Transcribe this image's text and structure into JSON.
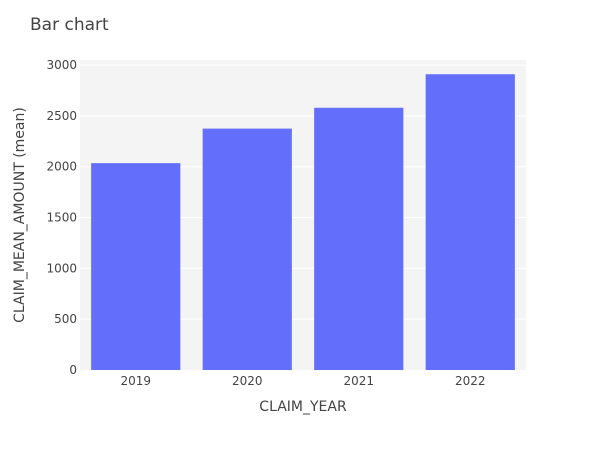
{
  "chart_data": {
    "type": "bar",
    "title": "Bar chart",
    "xlabel": "CLAIM_YEAR",
    "ylabel": "CLAIM_MEAN_AMOUNT (mean)",
    "categories": [
      "2019",
      "2020",
      "2021",
      "2022"
    ],
    "values": [
      2035,
      2375,
      2580,
      2910
    ],
    "ylim": [
      0,
      3050
    ],
    "yticks": [
      0,
      500,
      1000,
      1500,
      2000,
      2500,
      3000
    ],
    "grid": true,
    "bar_color": "#636efa",
    "plot_background": "#f4f4f4",
    "grid_color": "#ffffff"
  }
}
